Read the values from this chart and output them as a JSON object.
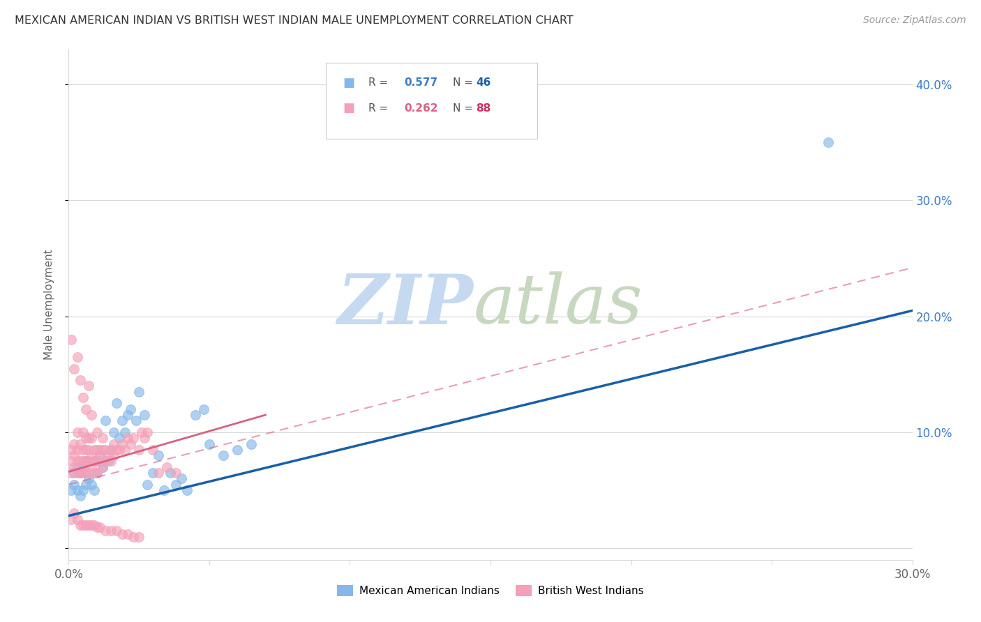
{
  "title": "MEXICAN AMERICAN INDIAN VS BRITISH WEST INDIAN MALE UNEMPLOYMENT CORRELATION CHART",
  "source": "Source: ZipAtlas.com",
  "ylabel": "Male Unemployment",
  "xlim": [
    0.0,
    0.3
  ],
  "ylim": [
    -0.01,
    0.43
  ],
  "xticks": [
    0.0,
    0.05,
    0.1,
    0.15,
    0.2,
    0.25,
    0.3
  ],
  "xtick_labels": [
    "0.0%",
    "",
    "",
    "",
    "",
    "",
    "30.0%"
  ],
  "yticks": [
    0.0,
    0.1,
    0.2,
    0.3,
    0.4
  ],
  "ytick_labels": [
    "",
    "10.0%",
    "20.0%",
    "30.0%",
    "40.0%"
  ],
  "background_color": "#ffffff",
  "legend_label1": "Mexican American Indians",
  "legend_label2": "British West Indians",
  "color_blue": "#85b8e8",
  "color_pink": "#f4a0b8",
  "color_blue_line": "#1a5fa8",
  "color_pink_line": "#d96080",
  "color_blue_text": "#3a7bc8",
  "color_pink_text": "#d96080",
  "color_blue_N": "#1a5fa8",
  "color_pink_N": "#d03060",
  "blue_line_x": [
    0.0,
    0.3
  ],
  "blue_line_y": [
    0.028,
    0.205
  ],
  "pink_line_x": [
    0.0,
    0.07
  ],
  "pink_line_y": [
    0.066,
    0.115
  ],
  "pink_dashed_line_x": [
    0.0,
    0.3
  ],
  "pink_dashed_line_y": [
    0.055,
    0.242
  ],
  "blue_points_x": [
    0.001,
    0.002,
    0.002,
    0.003,
    0.003,
    0.004,
    0.004,
    0.005,
    0.005,
    0.006,
    0.006,
    0.007,
    0.008,
    0.009,
    0.009,
    0.01,
    0.011,
    0.012,
    0.013,
    0.014,
    0.015,
    0.016,
    0.017,
    0.018,
    0.019,
    0.02,
    0.021,
    0.022,
    0.024,
    0.025,
    0.027,
    0.028,
    0.03,
    0.032,
    0.034,
    0.036,
    0.038,
    0.04,
    0.042,
    0.045,
    0.048,
    0.05,
    0.055,
    0.06,
    0.065,
    0.27
  ],
  "blue_points_y": [
    0.05,
    0.055,
    0.065,
    0.05,
    0.07,
    0.045,
    0.065,
    0.05,
    0.07,
    0.055,
    0.075,
    0.06,
    0.055,
    0.05,
    0.075,
    0.065,
    0.08,
    0.07,
    0.11,
    0.075,
    0.085,
    0.1,
    0.125,
    0.095,
    0.11,
    0.1,
    0.115,
    0.12,
    0.11,
    0.135,
    0.115,
    0.055,
    0.065,
    0.08,
    0.05,
    0.065,
    0.055,
    0.06,
    0.05,
    0.115,
    0.12,
    0.09,
    0.08,
    0.085,
    0.09,
    0.35
  ],
  "pink_points_x": [
    0.001,
    0.001,
    0.001,
    0.002,
    0.002,
    0.002,
    0.003,
    0.003,
    0.003,
    0.003,
    0.004,
    0.004,
    0.004,
    0.005,
    0.005,
    0.005,
    0.005,
    0.006,
    0.006,
    0.006,
    0.006,
    0.007,
    0.007,
    0.007,
    0.007,
    0.008,
    0.008,
    0.008,
    0.009,
    0.009,
    0.009,
    0.01,
    0.01,
    0.01,
    0.011,
    0.011,
    0.012,
    0.012,
    0.013,
    0.013,
    0.014,
    0.015,
    0.015,
    0.016,
    0.016,
    0.017,
    0.018,
    0.019,
    0.02,
    0.021,
    0.022,
    0.023,
    0.025,
    0.026,
    0.027,
    0.028,
    0.03,
    0.032,
    0.035,
    0.038,
    0.001,
    0.002,
    0.003,
    0.004,
    0.005,
    0.006,
    0.007,
    0.008,
    0.01,
    0.012,
    0.001,
    0.002,
    0.003,
    0.004,
    0.005,
    0.006,
    0.007,
    0.008,
    0.009,
    0.01,
    0.011,
    0.013,
    0.015,
    0.017,
    0.019,
    0.021,
    0.023,
    0.025
  ],
  "pink_points_y": [
    0.065,
    0.075,
    0.085,
    0.07,
    0.08,
    0.09,
    0.065,
    0.075,
    0.085,
    0.1,
    0.065,
    0.075,
    0.09,
    0.065,
    0.075,
    0.085,
    0.1,
    0.065,
    0.075,
    0.085,
    0.095,
    0.065,
    0.075,
    0.085,
    0.095,
    0.07,
    0.08,
    0.095,
    0.065,
    0.075,
    0.085,
    0.065,
    0.075,
    0.085,
    0.075,
    0.085,
    0.07,
    0.085,
    0.075,
    0.085,
    0.08,
    0.075,
    0.085,
    0.08,
    0.09,
    0.085,
    0.085,
    0.09,
    0.085,
    0.095,
    0.09,
    0.095,
    0.085,
    0.1,
    0.095,
    0.1,
    0.085,
    0.065,
    0.07,
    0.065,
    0.18,
    0.155,
    0.165,
    0.145,
    0.13,
    0.12,
    0.14,
    0.115,
    0.1,
    0.095,
    0.025,
    0.03,
    0.025,
    0.02,
    0.02,
    0.02,
    0.02,
    0.02,
    0.02,
    0.018,
    0.018,
    0.015,
    0.015,
    0.015,
    0.012,
    0.012,
    0.01,
    0.01
  ]
}
